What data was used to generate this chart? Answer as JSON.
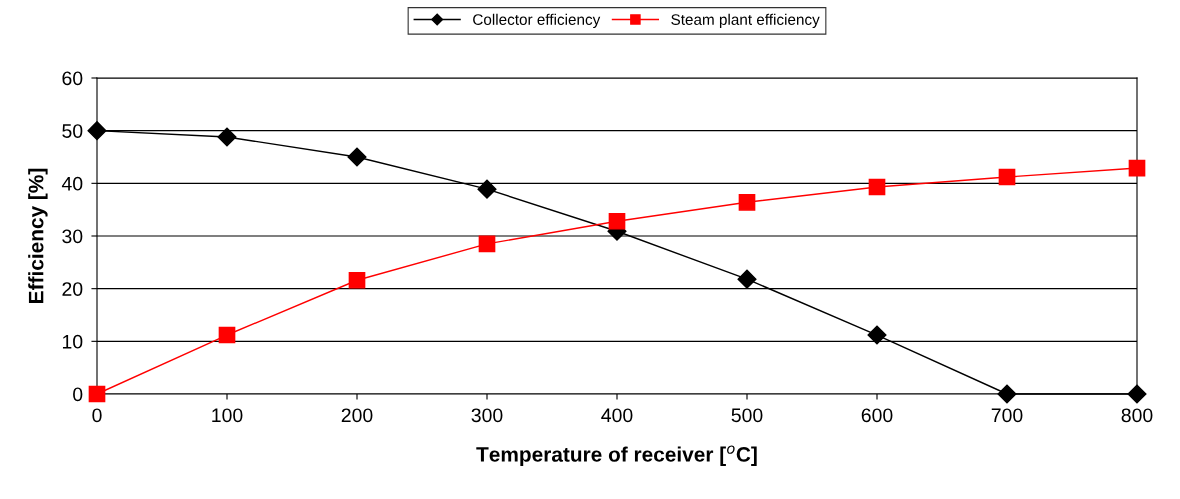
{
  "chart_data": {
    "type": "line",
    "xlabel": "Temperature of receiver [$^{o}$C]",
    "ylabel": "Efficiency [%]",
    "x": [
      0,
      100,
      200,
      300,
      400,
      500,
      600,
      700,
      800
    ],
    "series": [
      {
        "name": "Collector efficiency",
        "color": "#000000",
        "marker": "diamond",
        "values": [
          50,
          48.8,
          45,
          38.9,
          30.9,
          21.8,
          11.2,
          0,
          0
        ]
      },
      {
        "name": "Steam plant efficiency",
        "color": "#ff0000",
        "marker": "square",
        "values": [
          0,
          11.2,
          21.6,
          28.5,
          32.8,
          36.4,
          39.3,
          41.2,
          42.9
        ]
      }
    ],
    "xlim": [
      0,
      800
    ],
    "xticks": [
      0,
      100,
      200,
      300,
      400,
      500,
      600,
      700,
      800
    ],
    "ylim": [
      0,
      60
    ],
    "yticks": [
      0,
      10,
      20,
      30,
      40,
      50,
      60
    ],
    "grid": "y",
    "legend": "top",
    "line_style": "solid"
  }
}
